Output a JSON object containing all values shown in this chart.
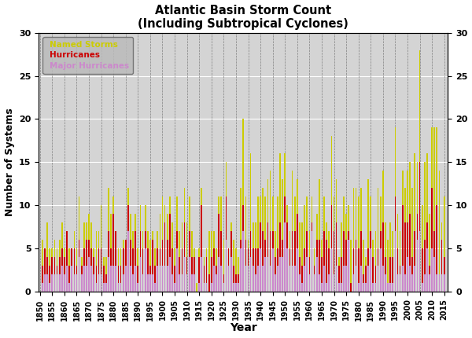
{
  "title": "Atlantic Basin Storm Count\n(Including Subtropical Cyclones)",
  "xlabel": "Year",
  "ylabel": "Number of Systems",
  "ylim": [
    0,
    30
  ],
  "xlim": [
    1849.5,
    2016.5
  ],
  "bg_color": "#d4d4d4",
  "named_color": "#cccc00",
  "hurr_color": "#cc0000",
  "major_color": "#cc88cc",
  "years": [
    1851,
    1852,
    1853,
    1854,
    1855,
    1856,
    1857,
    1858,
    1859,
    1860,
    1861,
    1862,
    1863,
    1864,
    1865,
    1866,
    1867,
    1868,
    1869,
    1870,
    1871,
    1872,
    1873,
    1874,
    1875,
    1876,
    1877,
    1878,
    1879,
    1880,
    1881,
    1882,
    1883,
    1884,
    1885,
    1886,
    1887,
    1888,
    1889,
    1890,
    1891,
    1892,
    1893,
    1894,
    1895,
    1896,
    1897,
    1898,
    1899,
    1900,
    1901,
    1902,
    1903,
    1904,
    1905,
    1906,
    1907,
    1908,
    1909,
    1910,
    1911,
    1912,
    1913,
    1914,
    1915,
    1916,
    1917,
    1918,
    1919,
    1920,
    1921,
    1922,
    1923,
    1924,
    1925,
    1926,
    1927,
    1928,
    1929,
    1930,
    1931,
    1932,
    1933,
    1934,
    1935,
    1936,
    1937,
    1938,
    1939,
    1940,
    1941,
    1942,
    1943,
    1944,
    1945,
    1946,
    1947,
    1948,
    1949,
    1950,
    1951,
    1952,
    1953,
    1954,
    1955,
    1956,
    1957,
    1958,
    1959,
    1960,
    1961,
    1962,
    1963,
    1964,
    1965,
    1966,
    1967,
    1968,
    1969,
    1970,
    1971,
    1972,
    1973,
    1974,
    1975,
    1976,
    1977,
    1978,
    1979,
    1980,
    1981,
    1982,
    1983,
    1984,
    1985,
    1986,
    1987,
    1988,
    1989,
    1990,
    1991,
    1992,
    1993,
    1994,
    1995,
    1996,
    1997,
    1998,
    1999,
    2000,
    2001,
    2002,
    2003,
    2004,
    2005,
    2006,
    2007,
    2008,
    2009,
    2010,
    2011,
    2012,
    2013,
    2014,
    2015
  ],
  "named": [
    6,
    5,
    8,
    5,
    5,
    6,
    5,
    6,
    8,
    5,
    7,
    5,
    5,
    7,
    5,
    11,
    4,
    8,
    8,
    9,
    8,
    5,
    7,
    7,
    10,
    4,
    4,
    12,
    9,
    11,
    7,
    5,
    5,
    6,
    6,
    12,
    9,
    7,
    9,
    5,
    10,
    7,
    10,
    7,
    6,
    7,
    5,
    7,
    9,
    11,
    10,
    9,
    11,
    8,
    5,
    11,
    7,
    8,
    12,
    8,
    11,
    7,
    5,
    1,
    5,
    12,
    4,
    5,
    7,
    7,
    7,
    5,
    11,
    11,
    6,
    15,
    5,
    8,
    6,
    5,
    4,
    12,
    20,
    11,
    6,
    16,
    8,
    8,
    11,
    11,
    12,
    11,
    13,
    14,
    11,
    7,
    11,
    16,
    13,
    16,
    10,
    7,
    14,
    11,
    13,
    8,
    8,
    10,
    11,
    7,
    11,
    5,
    9,
    13,
    6,
    11,
    8,
    7,
    18,
    11,
    13,
    4,
    8,
    11,
    9,
    10,
    6,
    12,
    12,
    11,
    12,
    6,
    4,
    13,
    11,
    6,
    7,
    12,
    11,
    14,
    8,
    6,
    8,
    7,
    19,
    9,
    7,
    14,
    12,
    14,
    15,
    12,
    16,
    15,
    28,
    10,
    15,
    16,
    9,
    19,
    19,
    19,
    14,
    8,
    11
  ],
  "hurricanes": [
    3,
    5,
    4,
    3,
    4,
    4,
    3,
    4,
    5,
    4,
    7,
    3,
    5,
    5,
    3,
    6,
    3,
    5,
    6,
    6,
    5,
    4,
    3,
    5,
    5,
    3,
    2,
    7,
    5,
    9,
    7,
    3,
    3,
    5,
    6,
    10,
    6,
    5,
    7,
    3,
    7,
    5,
    7,
    5,
    3,
    6,
    3,
    5,
    5,
    6,
    8,
    6,
    9,
    5,
    3,
    7,
    4,
    5,
    8,
    4,
    7,
    4,
    4,
    0,
    4,
    10,
    3,
    4,
    2,
    4,
    5,
    3,
    9,
    7,
    2,
    11,
    5,
    7,
    3,
    2,
    2,
    6,
    10,
    6,
    5,
    7,
    5,
    5,
    5,
    8,
    7,
    6,
    8,
    7,
    7,
    4,
    5,
    8,
    6,
    11,
    8,
    5,
    7,
    7,
    9,
    4,
    3,
    5,
    7,
    4,
    8,
    3,
    6,
    6,
    4,
    7,
    6,
    5,
    10,
    7,
    8,
    3,
    4,
    7,
    6,
    7,
    1,
    5,
    6,
    5,
    7,
    2,
    3,
    5,
    7,
    4,
    3,
    5,
    7,
    8,
    4,
    1,
    4,
    4,
    11,
    5,
    3,
    10,
    8,
    8,
    9,
    4,
    7,
    9,
    15,
    5,
    6,
    8,
    3,
    12,
    7,
    10,
    2,
    6,
    4
  ],
  "major": [
    1,
    2,
    2,
    1,
    2,
    2,
    2,
    2,
    3,
    2,
    3,
    1,
    3,
    2,
    2,
    4,
    2,
    3,
    3,
    4,
    3,
    2,
    1,
    2,
    2,
    1,
    1,
    4,
    3,
    3,
    3,
    1,
    1,
    2,
    3,
    7,
    3,
    2,
    3,
    1,
    4,
    2,
    5,
    2,
    2,
    2,
    1,
    3,
    3,
    3,
    3,
    3,
    4,
    2,
    1,
    5,
    2,
    2,
    4,
    2,
    4,
    2,
    2,
    0,
    1,
    4,
    1,
    1,
    0,
    1,
    3,
    2,
    4,
    3,
    1,
    6,
    3,
    4,
    1,
    1,
    1,
    5,
    7,
    3,
    3,
    4,
    3,
    2,
    3,
    5,
    3,
    4,
    4,
    3,
    5,
    2,
    3,
    4,
    4,
    8,
    5,
    3,
    3,
    3,
    5,
    2,
    1,
    3,
    4,
    2,
    7,
    2,
    4,
    2,
    1,
    3,
    1,
    2,
    5,
    2,
    3,
    1,
    1,
    3,
    3,
    6,
    0,
    2,
    3,
    1,
    3,
    1,
    1,
    3,
    5,
    1,
    1,
    3,
    5,
    3,
    2,
    1,
    1,
    1,
    7,
    2,
    2,
    3,
    2,
    4,
    3,
    2,
    3,
    6,
    7,
    1,
    2,
    5,
    2,
    5,
    4,
    2,
    2,
    2,
    2
  ]
}
